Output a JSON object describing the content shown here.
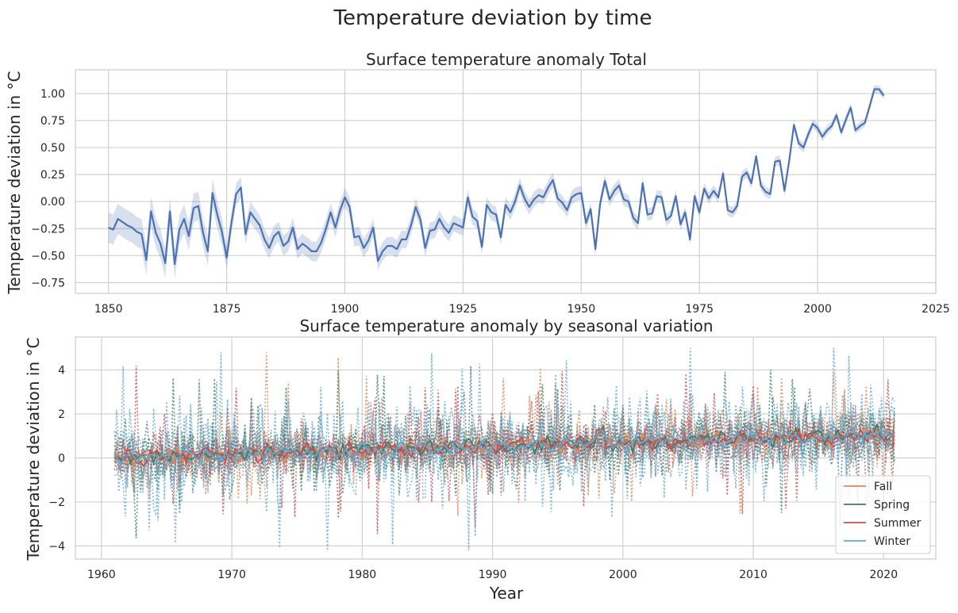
{
  "suptitle": "Temperature deviation by time",
  "colors": {
    "total": "#4c72b0",
    "band": "#4c72b0",
    "fall": "#dd8452",
    "spring": "#3b7d6e",
    "summer": "#c44e52",
    "winter": "#64a8cd",
    "grid": "#d0d0d0",
    "frame": "#cccccc"
  },
  "chart_data": [
    {
      "type": "line",
      "title": "Surface temperature anomaly Total",
      "xlabel": "",
      "ylabel": "Temperature deviation in °C",
      "xlim": [
        1843,
        2025
      ],
      "ylim": [
        -0.85,
        1.22
      ],
      "xticks": [
        1850,
        1875,
        1900,
        1925,
        1950,
        1975,
        2000,
        2025
      ],
      "yticks": [
        -0.75,
        -0.5,
        -0.25,
        0.0,
        0.25,
        0.5,
        0.75,
        1.0
      ],
      "ytick_labels": [
        "−0.75",
        "−0.50",
        "−0.25",
        "0.00",
        "0.25",
        "0.50",
        "0.75",
        "1.00"
      ],
      "grid": true,
      "ci_band": true,
      "x_start": 1850,
      "values": [
        -0.24,
        -0.26,
        -0.16,
        -0.19,
        -0.22,
        -0.24,
        -0.28,
        -0.3,
        -0.54,
        -0.09,
        -0.29,
        -0.39,
        -0.57,
        -0.09,
        -0.58,
        -0.26,
        -0.16,
        -0.32,
        -0.06,
        -0.04,
        -0.29,
        -0.46,
        0.08,
        -0.12,
        -0.28,
        -0.52,
        -0.2,
        0.07,
        0.13,
        -0.3,
        -0.1,
        -0.16,
        -0.22,
        -0.35,
        -0.43,
        -0.32,
        -0.28,
        -0.41,
        -0.37,
        -0.24,
        -0.44,
        -0.39,
        -0.42,
        -0.46,
        -0.46,
        -0.38,
        -0.25,
        -0.1,
        -0.24,
        -0.08,
        0.04,
        -0.05,
        -0.33,
        -0.32,
        -0.43,
        -0.36,
        -0.24,
        -0.55,
        -0.46,
        -0.41,
        -0.41,
        -0.44,
        -0.35,
        -0.35,
        -0.22,
        -0.05,
        -0.17,
        -0.43,
        -0.27,
        -0.26,
        -0.16,
        -0.24,
        -0.29,
        -0.2,
        -0.22,
        -0.24,
        0.04,
        -0.14,
        -0.18,
        -0.42,
        -0.03,
        -0.1,
        -0.12,
        -0.33,
        -0.03,
        -0.1,
        0.0,
        0.15,
        0.03,
        -0.05,
        0.02,
        0.06,
        0.04,
        0.13,
        0.2,
        0.03,
        -0.01,
        -0.08,
        0.04,
        0.07,
        0.08,
        -0.2,
        -0.07,
        -0.44,
        -0.02,
        0.19,
        0.02,
        0.1,
        0.15,
        0.02,
        0.0,
        -0.15,
        -0.2,
        0.17,
        -0.12,
        -0.11,
        0.05,
        0.04,
        -0.17,
        -0.13,
        0.05,
        -0.21,
        -0.1,
        -0.35,
        0.05,
        -0.1,
        0.12,
        0.03,
        0.1,
        0.04,
        0.26,
        -0.08,
        -0.1,
        -0.04,
        0.23,
        0.27,
        0.17,
        0.42,
        0.15,
        0.09,
        0.07,
        0.37,
        0.38,
        0.1,
        0.38,
        0.71,
        0.54,
        0.5,
        0.62,
        0.72,
        0.68,
        0.6,
        0.66,
        0.7,
        0.8,
        0.64,
        0.76,
        0.87,
        0.66,
        0.7,
        0.73,
        0.88,
        1.04,
        1.04,
        0.98
      ]
    },
    {
      "type": "line",
      "title": "Surface temperature anomaly by seasonal variation",
      "xlabel": "Year",
      "ylabel": "Temperature deviation in °C",
      "xlim": [
        1958,
        2024
      ],
      "ylim": [
        -4.6,
        5.5
      ],
      "xticks": [
        1960,
        1970,
        1980,
        1990,
        2000,
        2010,
        2020
      ],
      "yticks": [
        -4,
        -2,
        0,
        2,
        4
      ],
      "ytick_labels": [
        "−4",
        "−2",
        "0",
        "2",
        "4"
      ],
      "grid": true,
      "legend": "lower-right",
      "x_start": 1961,
      "x_end": 2021,
      "series": [
        {
          "name": "Fall",
          "key": "fall"
        },
        {
          "name": "Spring",
          "key": "spring"
        },
        {
          "name": "Summer",
          "key": "summer"
        },
        {
          "name": "Winter",
          "key": "winter"
        }
      ]
    }
  ]
}
